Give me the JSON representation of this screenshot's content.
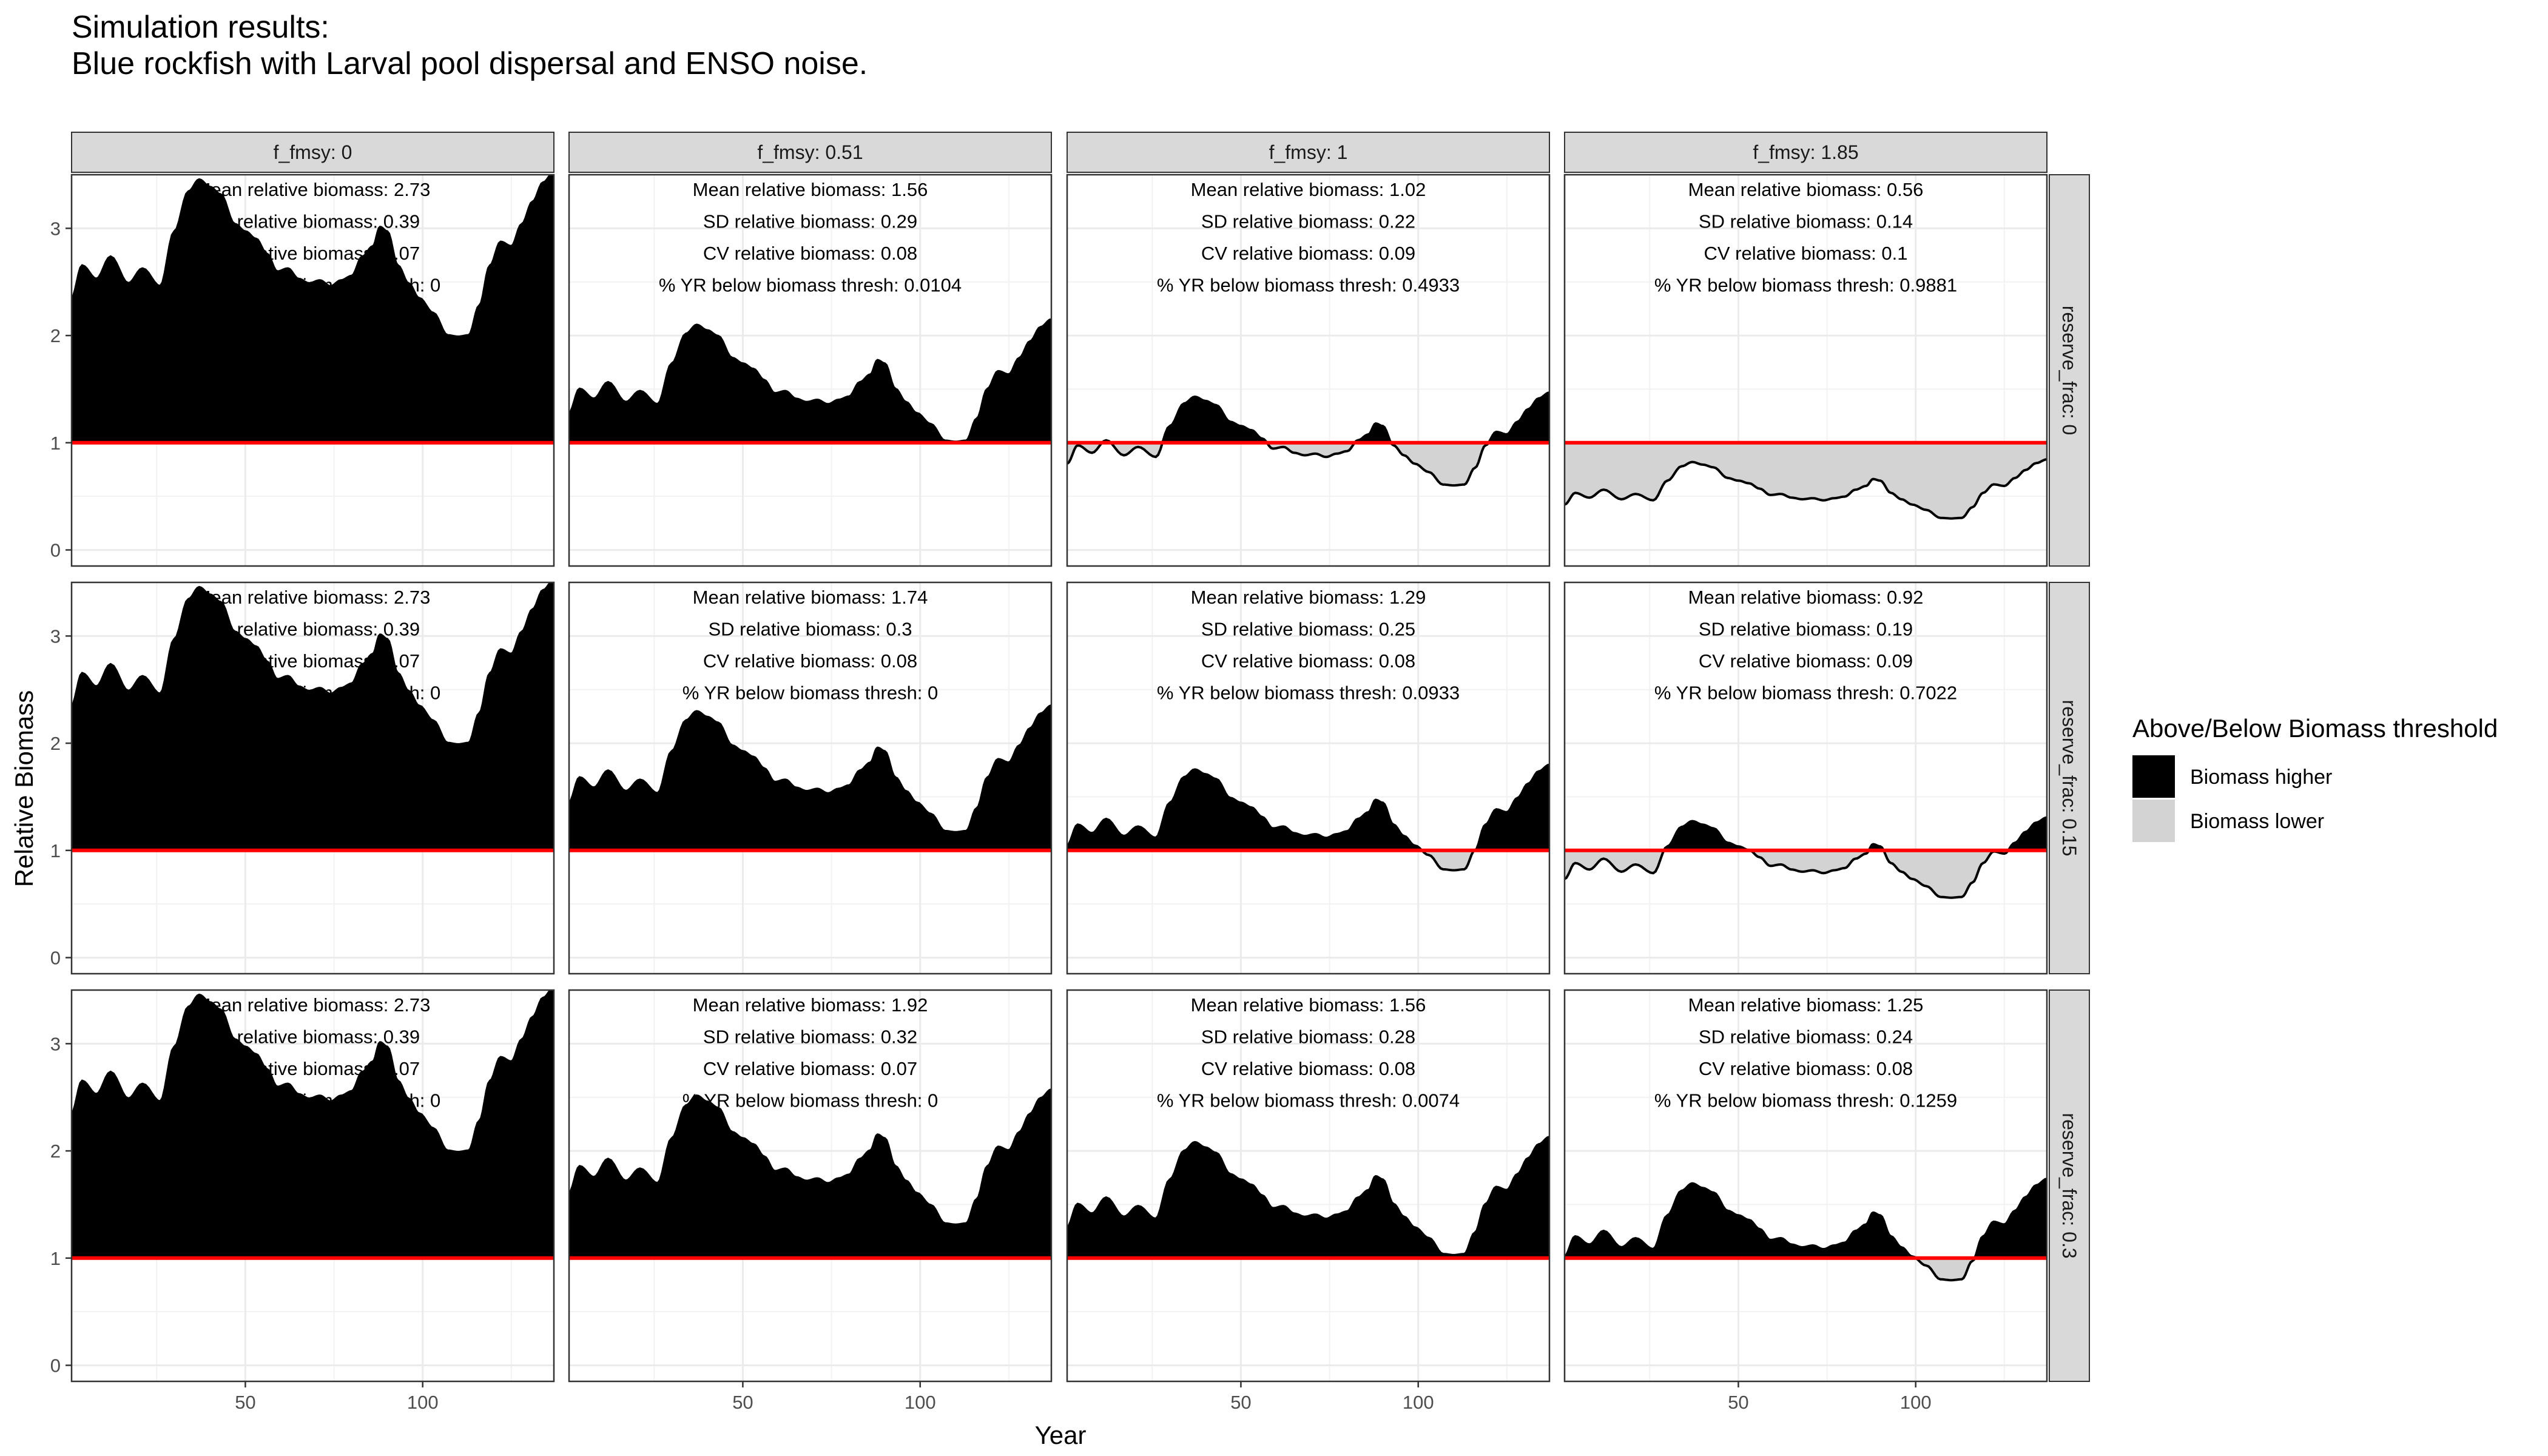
{
  "title_lines": [
    "Simulation results:",
    "Blue rockfish with Larval pool dispersal and ENSO noise."
  ],
  "colors": {
    "higher": "#000000",
    "lower": "#d3d3d3",
    "threshold": "#ff0000",
    "strip": "#d9d9d9",
    "grid": "#ebebeb"
  },
  "chart_data": {
    "type": "area",
    "xlabel": "Year",
    "ylabel": "Relative Biomass",
    "xlim": [
      1,
      137
    ],
    "ylim": [
      -0.15,
      3.5
    ],
    "x_ticks": [
      50,
      100
    ],
    "y_ticks": [
      0,
      1,
      2,
      3
    ],
    "threshold": 1,
    "grid": true,
    "legend": {
      "title": "Above/Below Biomass threshold",
      "entries": [
        "Biomass higher",
        "Biomass lower"
      ],
      "position": "right"
    },
    "col_strips": [
      "f_fmsy: 0",
      "f_fmsy: 0.51",
      "f_fmsy: 1",
      "f_fmsy: 1.85"
    ],
    "row_strips": [
      "reserve_frac: 0",
      "reserve_frac: 0.15",
      "reserve_frac: 0.3"
    ],
    "base_shape": {
      "x": [
        1,
        4,
        8,
        12,
        17,
        21,
        26,
        30,
        34,
        37,
        40,
        43,
        47,
        50,
        53,
        56,
        59,
        62,
        65,
        68,
        71,
        74,
        77,
        80,
        83,
        86,
        88,
        90,
        93,
        96,
        99,
        103,
        107,
        110,
        113,
        116,
        119,
        122,
        125,
        128,
        131,
        134,
        137
      ],
      "y": [
        2.5,
        2.72,
        2.63,
        2.78,
        2.6,
        2.7,
        2.58,
        2.95,
        3.22,
        3.3,
        3.25,
        3.2,
        3.0,
        2.95,
        2.9,
        2.8,
        2.68,
        2.7,
        2.63,
        2.6,
        2.62,
        2.58,
        2.62,
        2.65,
        2.78,
        2.85,
        2.98,
        2.95,
        2.72,
        2.6,
        2.5,
        2.4,
        2.25,
        2.24,
        2.25,
        2.45,
        2.72,
        2.88,
        2.85,
        3.0,
        3.15,
        3.28,
        3.35
      ]
    },
    "panels": [
      {
        "row": 0,
        "col": 0,
        "mean": 2.73,
        "sd": 0.39,
        "annotations": [
          "Mean relative biomass: 2.73",
          "SD relative biomass: 0.39",
          "CV relative biomass: 0.07",
          "% YR below biomass thresh:  0"
        ]
      },
      {
        "row": 0,
        "col": 1,
        "mean": 1.56,
        "sd": 0.29,
        "annotations": [
          "Mean relative biomass: 1.56",
          "SD relative biomass: 0.29",
          "CV relative biomass: 0.08",
          "% YR below biomass thresh:  0.0104"
        ]
      },
      {
        "row": 0,
        "col": 2,
        "mean": 1.02,
        "sd": 0.22,
        "annotations": [
          "Mean relative biomass: 1.02",
          "SD relative biomass: 0.22",
          "CV relative biomass: 0.09",
          "% YR below biomass thresh:  0.4933"
        ]
      },
      {
        "row": 0,
        "col": 3,
        "mean": 0.56,
        "sd": 0.14,
        "annotations": [
          "Mean relative biomass: 0.56",
          "SD relative biomass: 0.14",
          "CV relative biomass: 0.1",
          "% YR below biomass thresh:  0.9881"
        ]
      },
      {
        "row": 1,
        "col": 0,
        "mean": 2.73,
        "sd": 0.39,
        "annotations": [
          "Mean relative biomass: 2.73",
          "SD relative biomass: 0.39",
          "CV relative biomass: 0.07",
          "% YR below biomass thresh:  0"
        ]
      },
      {
        "row": 1,
        "col": 1,
        "mean": 1.74,
        "sd": 0.3,
        "annotations": [
          "Mean relative biomass: 1.74",
          "SD relative biomass: 0.3",
          "CV relative biomass: 0.08",
          "% YR below biomass thresh:  0"
        ]
      },
      {
        "row": 1,
        "col": 2,
        "mean": 1.29,
        "sd": 0.25,
        "annotations": [
          "Mean relative biomass: 1.29",
          "SD relative biomass: 0.25",
          "CV relative biomass: 0.08",
          "% YR below biomass thresh:  0.0933"
        ]
      },
      {
        "row": 1,
        "col": 3,
        "mean": 0.92,
        "sd": 0.19,
        "annotations": [
          "Mean relative biomass: 0.92",
          "SD relative biomass: 0.19",
          "CV relative biomass: 0.09",
          "% YR below biomass thresh:  0.7022"
        ]
      },
      {
        "row": 2,
        "col": 0,
        "mean": 2.73,
        "sd": 0.39,
        "annotations": [
          "Mean relative biomass: 2.73",
          "SD relative biomass: 0.39",
          "CV relative biomass: 0.07",
          "% YR below biomass thresh:  0"
        ]
      },
      {
        "row": 2,
        "col": 1,
        "mean": 1.92,
        "sd": 0.32,
        "annotations": [
          "Mean relative biomass: 1.92",
          "SD relative biomass: 0.32",
          "CV relative biomass: 0.07",
          "% YR below biomass thresh:  0"
        ]
      },
      {
        "row": 2,
        "col": 2,
        "mean": 1.56,
        "sd": 0.28,
        "annotations": [
          "Mean relative biomass: 1.56",
          "SD relative biomass: 0.28",
          "CV relative biomass: 0.08",
          "% YR below biomass thresh:  0.0074"
        ]
      },
      {
        "row": 2,
        "col": 3,
        "mean": 1.25,
        "sd": 0.24,
        "annotations": [
          "Mean relative biomass: 1.25",
          "SD relative biomass: 0.24",
          "CV relative biomass: 0.08",
          "% YR below biomass thresh:  0.1259"
        ]
      }
    ]
  }
}
